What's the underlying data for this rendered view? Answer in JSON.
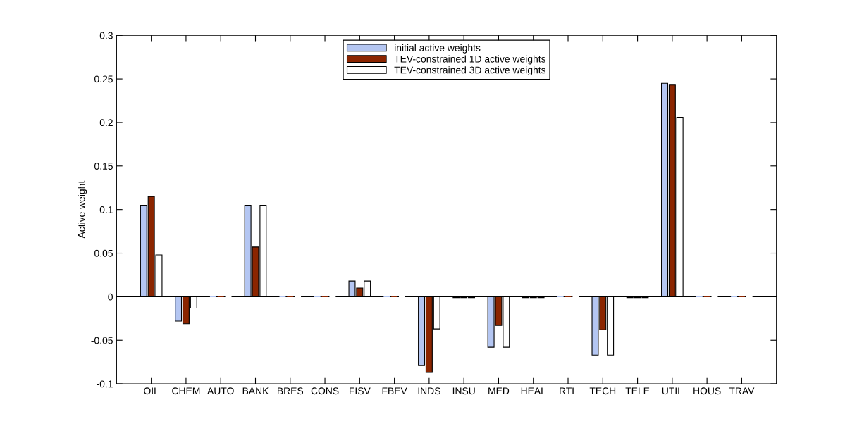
{
  "chart_data": {
    "type": "bar",
    "ylabel": "Active weight",
    "categories": [
      "OIL",
      "CHEM",
      "AUTO",
      "BANK",
      "BRES",
      "CONS",
      "FISV",
      "FBEV",
      "INDS",
      "INSU",
      "MED",
      "HEAL",
      "RTL",
      "TECH",
      "TELE",
      "UTIL",
      "HOUS",
      "TRAV"
    ],
    "series": [
      {
        "name": "initial active weights",
        "color": "#b4c6f2",
        "values": [
          0.105,
          -0.028,
          0,
          0.105,
          0,
          0,
          0.018,
          0,
          -0.079,
          -0.001,
          -0.058,
          -0.001,
          0,
          -0.067,
          -0.001,
          0.245,
          0,
          0
        ]
      },
      {
        "name": "TEV-constrained 1D active weights",
        "color": "#8b2500",
        "values": [
          0.115,
          -0.031,
          0,
          0.057,
          0,
          0,
          0.01,
          0,
          -0.087,
          -0.001,
          -0.033,
          -0.001,
          0,
          -0.038,
          -0.001,
          0.243,
          0,
          0
        ]
      },
      {
        "name": "TEV-constrained 3D active weights",
        "color": "#ffffff",
        "values": [
          0.048,
          -0.013,
          0,
          0.105,
          0,
          0,
          0.018,
          0,
          -0.037,
          -0.001,
          -0.058,
          -0.001,
          0,
          -0.067,
          -0.001,
          0.206,
          0,
          0
        ]
      }
    ],
    "ylim": [
      -0.1,
      0.3
    ],
    "yticks": [
      -0.1,
      -0.05,
      0,
      0.05,
      0.1,
      0.15,
      0.2,
      0.25,
      0.3
    ],
    "ref_lines": [
      {
        "axis": "y",
        "value": 0,
        "color": "#000000"
      }
    ],
    "grid": false,
    "legend": "top"
  }
}
